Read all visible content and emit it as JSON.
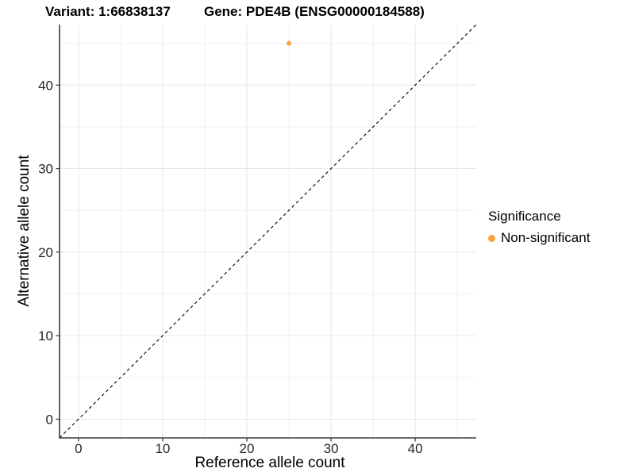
{
  "chart_data": {
    "type": "scatter",
    "titles": {
      "left": "Variant: 1:66838137",
      "right": "Gene: PDE4B (ENSG00000184588)"
    },
    "xlabel": "Reference allele count",
    "ylabel": "Alternative allele count",
    "xlim": [
      -2.25,
      47.25
    ],
    "ylim": [
      -2.25,
      47.25
    ],
    "x_major_ticks": [
      0,
      10,
      20,
      30,
      40
    ],
    "x_minor_ticks": [
      5,
      15,
      25,
      35,
      45
    ],
    "y_major_ticks": [
      0,
      10,
      20,
      30,
      40
    ],
    "y_minor_ticks": [
      5,
      15,
      25,
      35,
      45
    ],
    "grid": true,
    "points": [
      {
        "x": 25,
        "y": 45,
        "series": "Non-significant"
      }
    ],
    "reference_line": {
      "slope": 1,
      "intercept": 0,
      "style": "dashed",
      "color": "#000000"
    },
    "legend": {
      "title": "Significance",
      "position": "right",
      "items": [
        {
          "label": "Non-significant",
          "color": "#F9A242"
        }
      ]
    },
    "colors": {
      "point": "#F9A242",
      "axis_line": "#3c3c3c",
      "tick_mark": "#333333",
      "tick_label": "#262626",
      "grid_major": "#e6e6e6",
      "grid_minor": "#f1f1f1",
      "background": "#ffffff"
    }
  }
}
